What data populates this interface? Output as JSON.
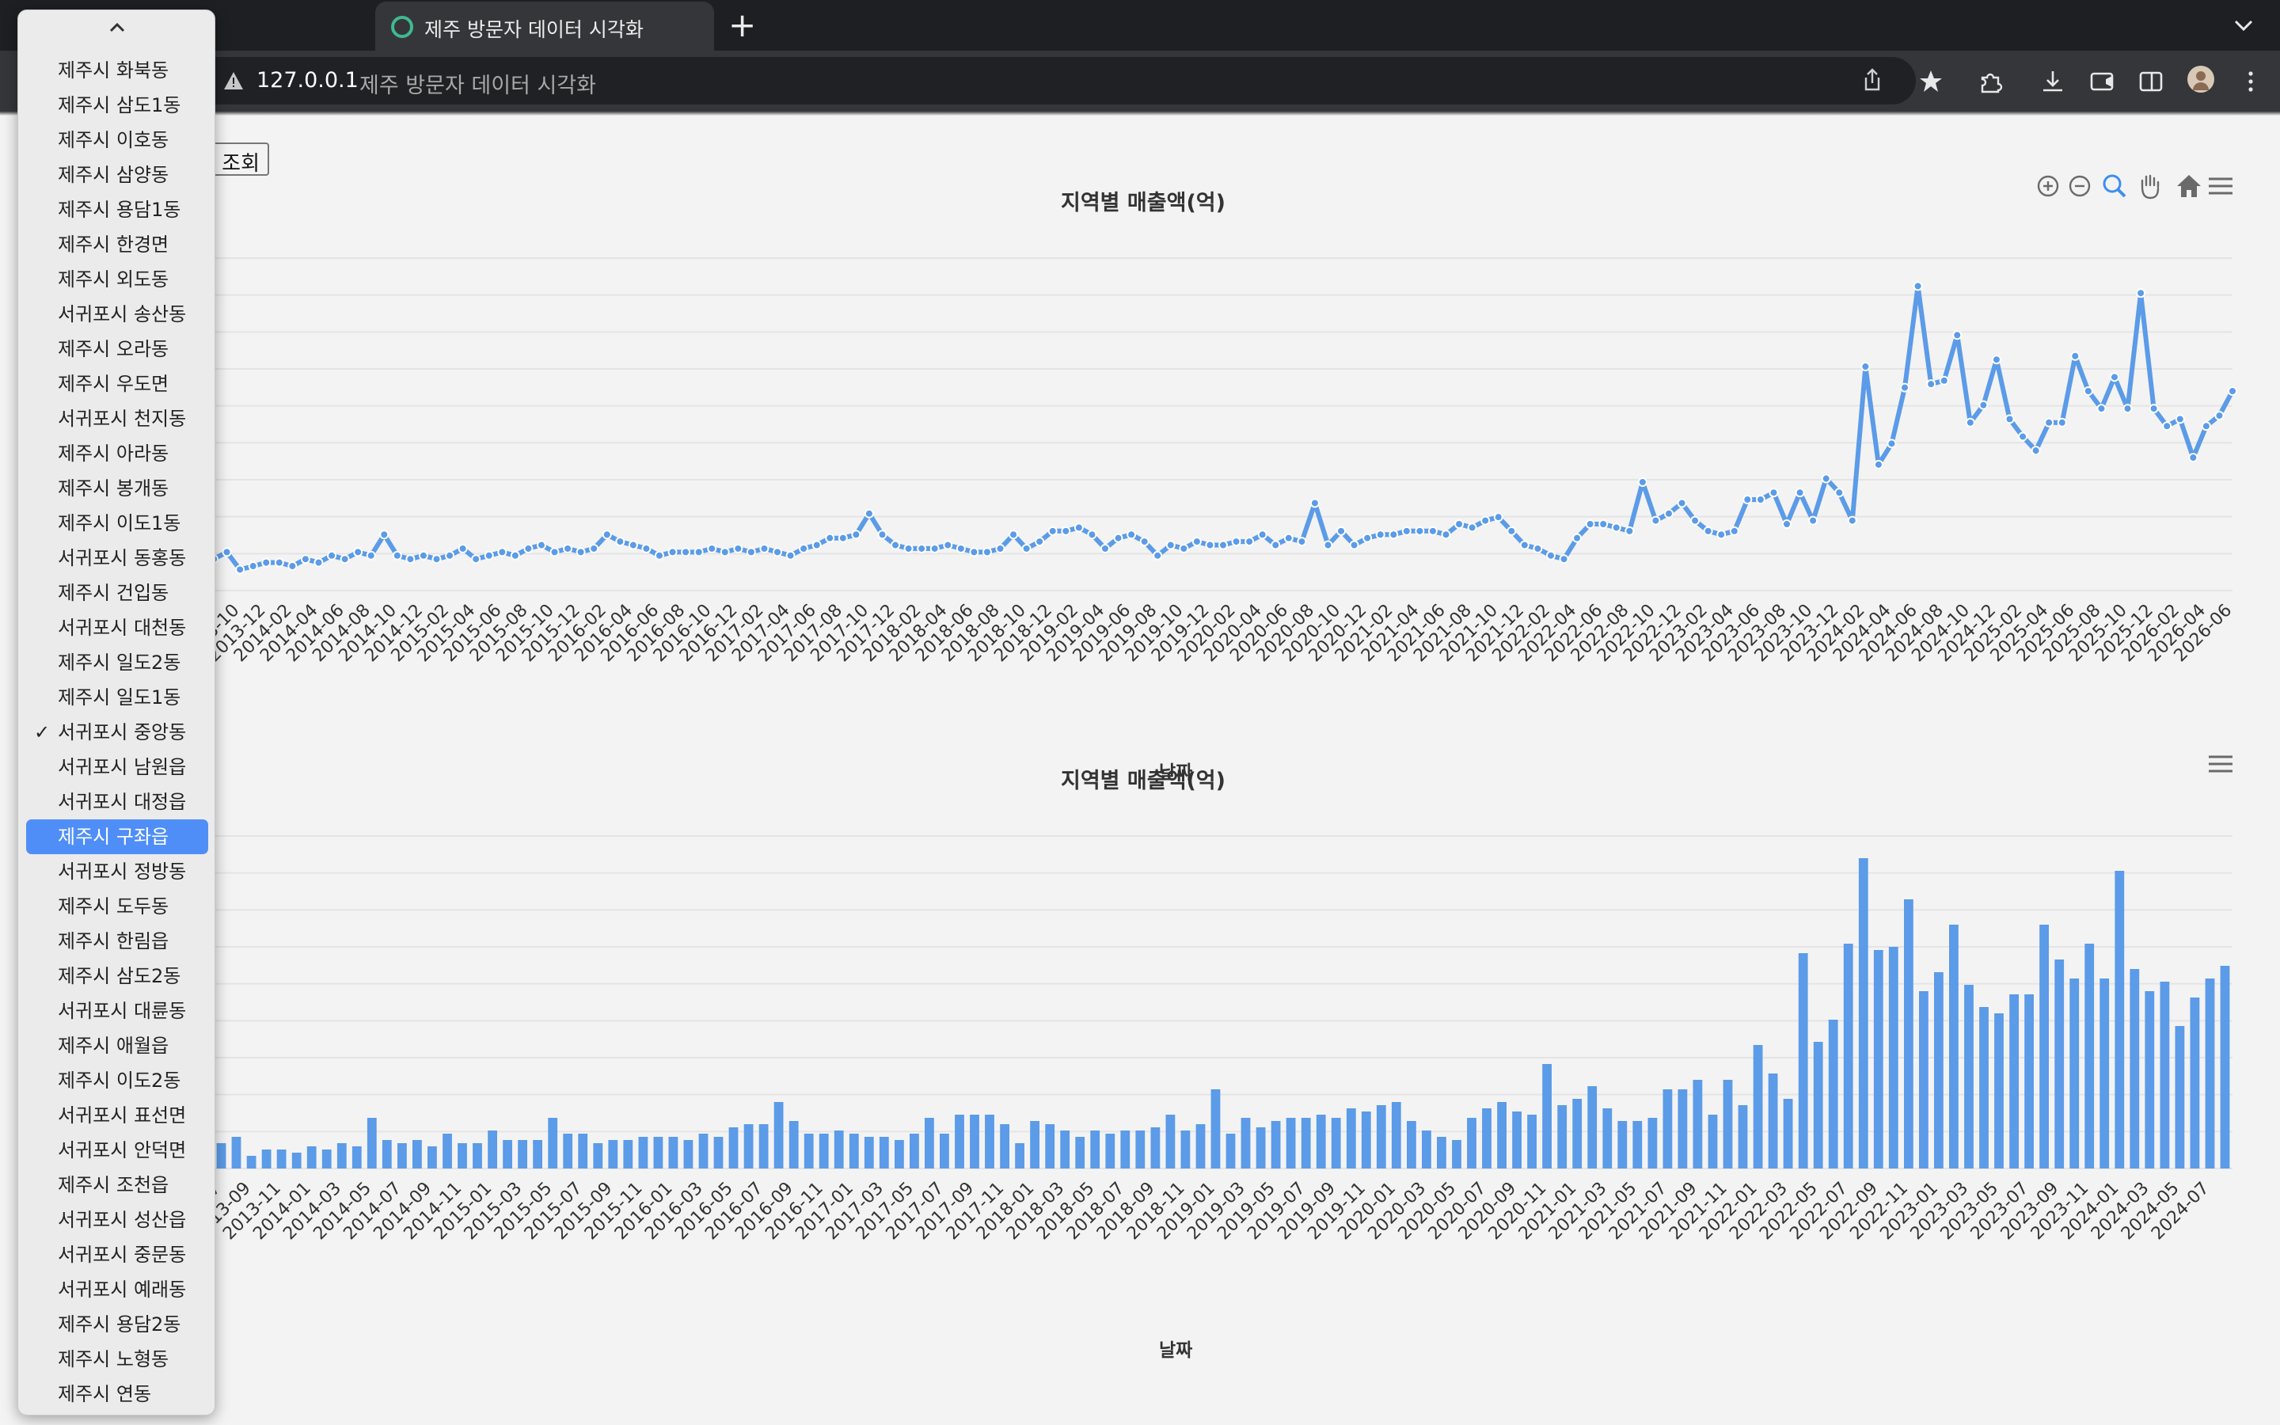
{
  "browser": {
    "tab_title": "제주 방문자 데이터 시각화",
    "new_tab": "+",
    "url_host": "127.0.0.1",
    "url_title": "제주 방문자 데이터 시각화"
  },
  "page": {
    "query_button": "조회"
  },
  "dropdown": {
    "selected": "서귀포시 중앙동",
    "highlighted": "제주시 구좌읍",
    "options": [
      "제주시 화북동",
      "제주시 삼도1동",
      "제주시 이호동",
      "제주시 삼양동",
      "제주시 용담1동",
      "제주시 한경면",
      "제주시 외도동",
      "서귀포시 송산동",
      "제주시 오라동",
      "제주시 우도면",
      "서귀포시 천지동",
      "제주시 아라동",
      "제주시 봉개동",
      "제주시 이도1동",
      "서귀포시 동홍동",
      "제주시 건입동",
      "서귀포시 대천동",
      "제주시 일도2동",
      "제주시 일도1동",
      "서귀포시 중앙동",
      "서귀포시 남원읍",
      "서귀포시 대정읍",
      "제주시 구좌읍",
      "서귀포시 정방동",
      "제주시 도두동",
      "제주시 한림읍",
      "제주시 삼도2동",
      "서귀포시 대륜동",
      "제주시 애월읍",
      "제주시 이도2동",
      "서귀포시 표선면",
      "서귀포시 안덕면",
      "제주시 조천읍",
      "서귀포시 성산읍",
      "서귀포시 중문동",
      "서귀포시 예래동",
      "제주시 용담2동",
      "제주시 노형동",
      "제주시 연동"
    ]
  },
  "colors": {
    "series": "#5b9be8",
    "grid": "#e4e4e4",
    "text": "#333333"
  },
  "chart_data": [
    {
      "type": "line",
      "title": "지역별 매출액(억)",
      "xlabel": "날짜",
      "ylabel": "",
      "grid": true,
      "x_start": "2013-08",
      "tick_every": 2,
      "values": [
        9,
        11,
        6,
        7,
        8,
        8,
        7,
        9,
        8,
        10,
        9,
        11,
        10,
        16,
        10,
        9,
        10,
        9,
        10,
        12,
        9,
        10,
        11,
        10,
        12,
        13,
        11,
        12,
        11,
        12,
        16,
        14,
        13,
        12,
        10,
        11,
        11,
        11,
        12,
        11,
        12,
        11,
        12,
        11,
        10,
        12,
        13,
        15,
        15,
        16,
        22,
        16,
        13,
        12,
        12,
        12,
        13,
        12,
        11,
        11,
        12,
        16,
        12,
        14,
        17,
        17,
        18,
        16,
        12,
        15,
        16,
        14,
        10,
        13,
        12,
        14,
        13,
        13,
        14,
        14,
        16,
        13,
        15,
        14,
        25,
        13,
        17,
        13,
        15,
        16,
        16,
        17,
        17,
        17,
        16,
        19,
        18,
        20,
        21,
        17,
        13,
        12,
        10,
        9,
        15,
        19,
        19,
        18,
        17,
        31,
        20,
        22,
        25,
        20,
        17,
        16,
        17,
        26,
        26,
        28,
        19,
        28,
        20,
        32,
        28,
        20,
        64,
        36,
        42,
        58,
        87,
        59,
        60,
        73,
        48,
        53,
        66,
        49,
        44,
        40,
        48,
        48,
        67,
        57,
        52,
        61,
        52,
        85,
        52,
        47,
        49,
        38,
        47,
        50,
        57
      ]
    },
    {
      "type": "bar",
      "title": "지역별 매출액(억)",
      "xlabel": "날짜",
      "ylabel": "",
      "grid": true,
      "x_start": "2013-07",
      "tick_every": 2,
      "values": [
        8,
        10,
        4,
        6,
        6,
        5,
        7,
        6,
        8,
        7,
        16,
        9,
        8,
        9,
        7,
        11,
        8,
        8,
        12,
        9,
        9,
        9,
        16,
        11,
        11,
        8,
        9,
        9,
        10,
        10,
        10,
        9,
        11,
        10,
        13,
        14,
        14,
        21,
        15,
        11,
        11,
        12,
        11,
        10,
        10,
        9,
        11,
        16,
        11,
        17,
        17,
        17,
        14,
        8,
        15,
        14,
        12,
        10,
        12,
        11,
        12,
        12,
        13,
        17,
        12,
        14,
        25,
        11,
        16,
        13,
        15,
        16,
        16,
        17,
        16,
        19,
        18,
        20,
        21,
        15,
        12,
        10,
        9,
        16,
        19,
        21,
        18,
        17,
        33,
        20,
        22,
        26,
        19,
        15,
        15,
        16,
        25,
        25,
        28,
        17,
        28,
        20,
        39,
        30,
        22,
        68,
        40,
        47,
        71,
        98,
        69,
        70,
        85,
        56,
        62,
        77,
        58,
        51,
        49,
        55,
        55,
        77,
        66,
        60,
        71,
        60,
        94,
        63,
        56,
        59,
        45,
        54,
        60,
        64
      ]
    }
  ]
}
